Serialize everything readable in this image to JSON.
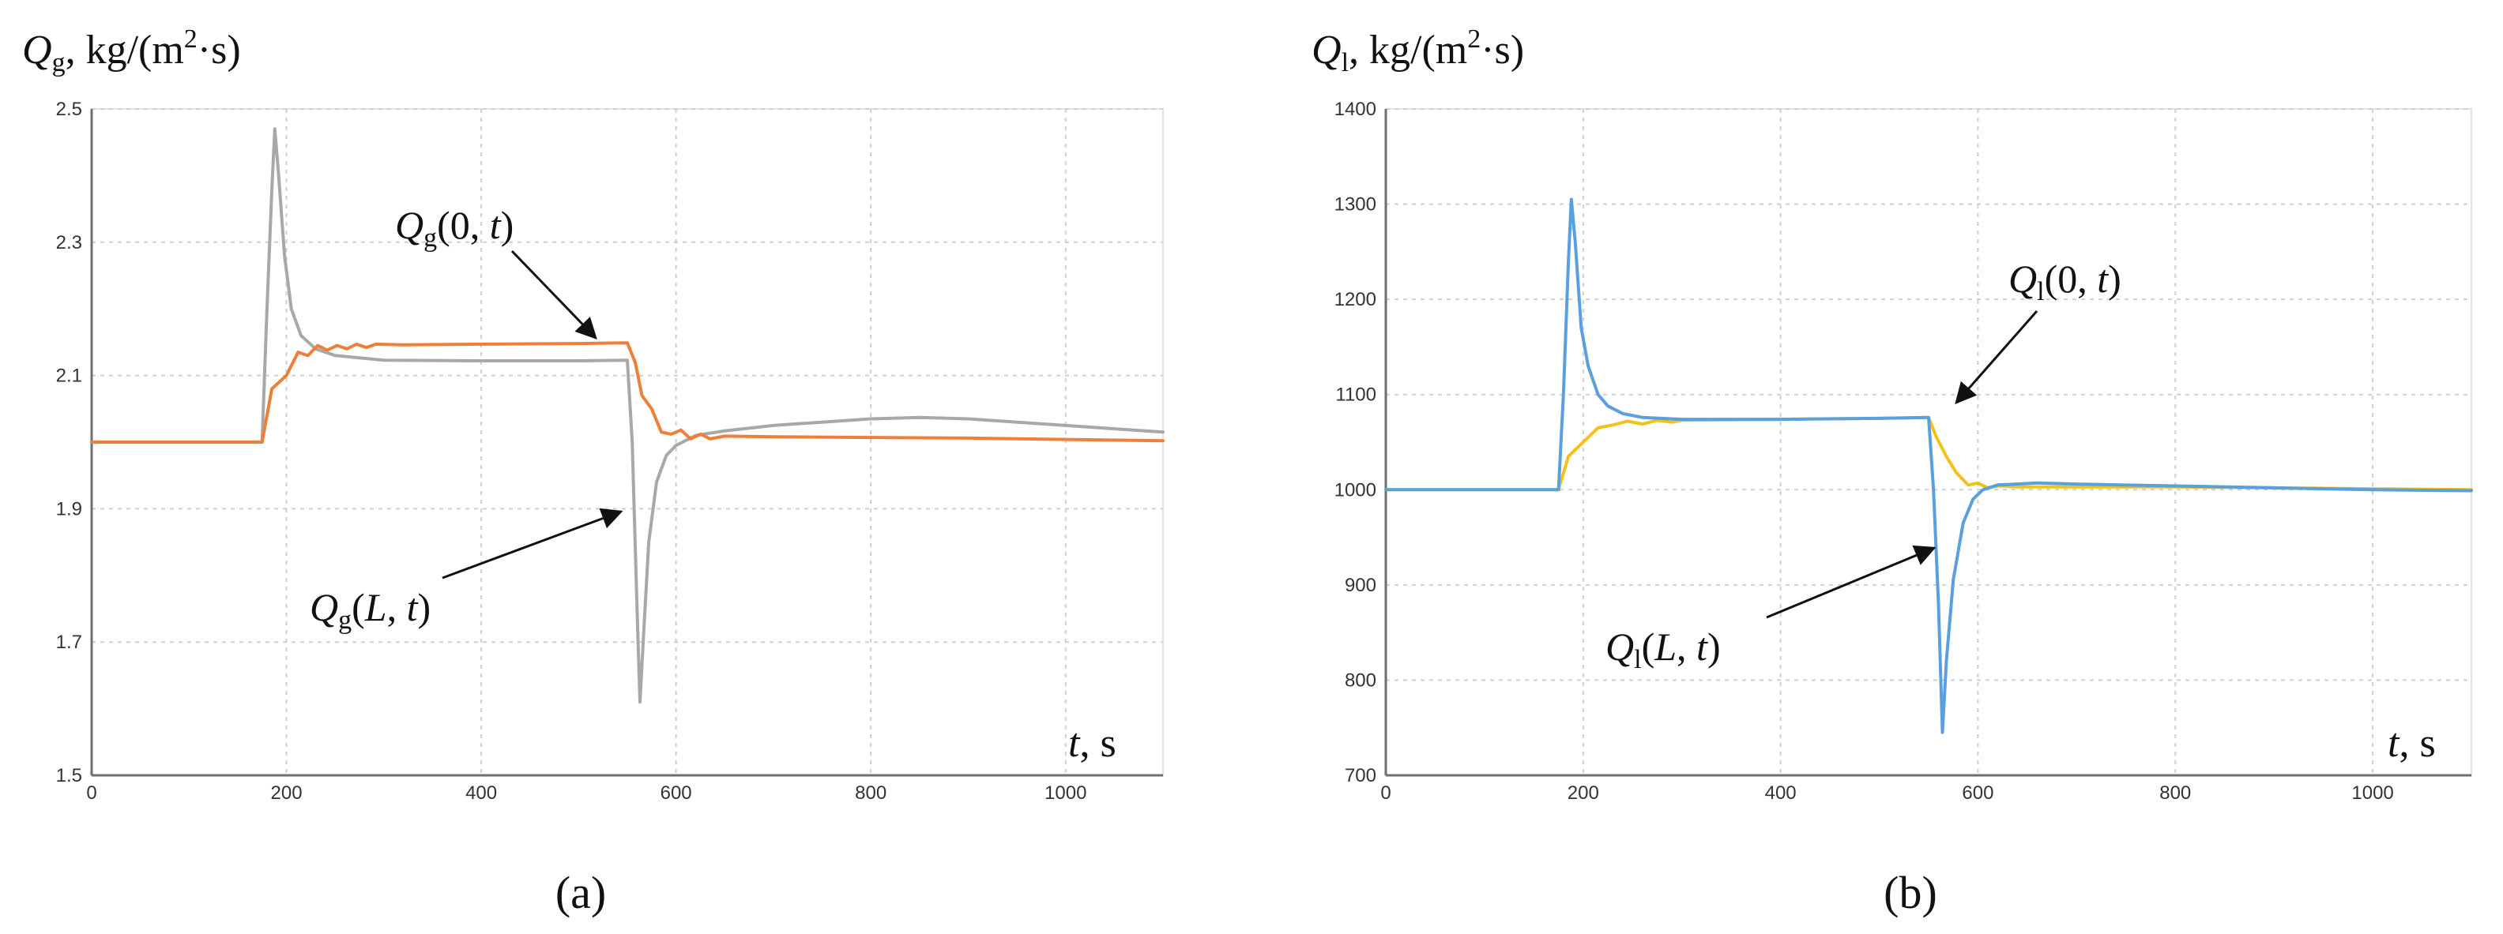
{
  "chart_data": [
    {
      "type": "line",
      "panel_label": "(a)",
      "ylabel": {
        "sym": "Q",
        "sub": "g",
        "unit_pre": ", kg/(m",
        "sup": "2",
        "unit_post": "·s)"
      },
      "xlabel": {
        "sym": "t",
        "unit": ", s"
      },
      "xlim": [
        0,
        1100
      ],
      "ylim": [
        1.5,
        2.5
      ],
      "xticks": [
        0,
        200,
        400,
        600,
        800,
        1000
      ],
      "xtick_labels": [
        "0",
        "200",
        "400",
        "600",
        "800",
        "1000"
      ],
      "yticks": [
        1.5,
        1.7,
        1.9,
        2.1,
        2.3,
        2.5
      ],
      "ytick_labels": [
        "1.5",
        "1.7",
        "1.9",
        "2.1",
        "2.3",
        "2.5"
      ],
      "grid": true,
      "series": [
        {
          "name": "Qg(L, t)",
          "color": "#a8a8a8",
          "points": [
            [
              0,
              2.0
            ],
            [
              175,
              2.0
            ],
            [
              180,
              2.2
            ],
            [
              185,
              2.38
            ],
            [
              188,
              2.47
            ],
            [
              192,
              2.4
            ],
            [
              198,
              2.28
            ],
            [
              205,
              2.2
            ],
            [
              215,
              2.16
            ],
            [
              230,
              2.14
            ],
            [
              250,
              2.13
            ],
            [
              300,
              2.123
            ],
            [
              400,
              2.122
            ],
            [
              500,
              2.122
            ],
            [
              550,
              2.123
            ],
            [
              555,
              2.0
            ],
            [
              560,
              1.75
            ],
            [
              563,
              1.61
            ],
            [
              567,
              1.72
            ],
            [
              572,
              1.85
            ],
            [
              580,
              1.94
            ],
            [
              590,
              1.98
            ],
            [
              600,
              1.995
            ],
            [
              620,
              2.01
            ],
            [
              650,
              2.017
            ],
            [
              700,
              2.025
            ],
            [
              750,
              2.03
            ],
            [
              800,
              2.035
            ],
            [
              850,
              2.037
            ],
            [
              900,
              2.035
            ],
            [
              950,
              2.03
            ],
            [
              1000,
              2.025
            ],
            [
              1050,
              2.02
            ],
            [
              1100,
              2.015
            ]
          ]
        },
        {
          "name": "Qg(0, t)",
          "color": "#ee7f3b",
          "points": [
            [
              0,
              2.0
            ],
            [
              175,
              2.0
            ],
            [
              185,
              2.08
            ],
            [
              200,
              2.1
            ],
            [
              212,
              2.135
            ],
            [
              222,
              2.13
            ],
            [
              232,
              2.145
            ],
            [
              242,
              2.138
            ],
            [
              252,
              2.145
            ],
            [
              262,
              2.14
            ],
            [
              272,
              2.147
            ],
            [
              282,
              2.142
            ],
            [
              292,
              2.147
            ],
            [
              320,
              2.146
            ],
            [
              400,
              2.147
            ],
            [
              500,
              2.148
            ],
            [
              550,
              2.149
            ],
            [
              558,
              2.12
            ],
            [
              565,
              2.07
            ],
            [
              575,
              2.05
            ],
            [
              585,
              2.015
            ],
            [
              595,
              2.012
            ],
            [
              605,
              2.018
            ],
            [
              615,
              2.005
            ],
            [
              625,
              2.012
            ],
            [
              635,
              2.005
            ],
            [
              650,
              2.009
            ],
            [
              700,
              2.008
            ],
            [
              800,
              2.007
            ],
            [
              900,
              2.006
            ],
            [
              1000,
              2.004
            ],
            [
              1100,
              2.002
            ]
          ]
        }
      ],
      "annotations": [
        {
          "sym": "Q",
          "sub": "g",
          "args": "(0, ",
          "var": "t",
          "close": ")"
        },
        {
          "sym": "Q",
          "sub": "g",
          "args": "(",
          "var": "L",
          "mid": ", ",
          "var2": "t",
          "close": ")"
        }
      ]
    },
    {
      "type": "line",
      "panel_label": "(b)",
      "ylabel": {
        "sym": "Q",
        "sub": "l",
        "unit_pre": ", kg/(m",
        "sup": "2",
        "unit_post": "·s)"
      },
      "xlabel": {
        "sym": "t",
        "unit": ", s"
      },
      "xlim": [
        0,
        1100
      ],
      "ylim": [
        700,
        1400
      ],
      "xticks": [
        0,
        200,
        400,
        600,
        800,
        1000
      ],
      "xtick_labels": [
        "0",
        "200",
        "400",
        "600",
        "800",
        "1000"
      ],
      "yticks": [
        700,
        800,
        900,
        1000,
        1100,
        1200,
        1300,
        1400
      ],
      "ytick_labels": [
        "700",
        "800",
        "900",
        "1000",
        "1100",
        "1200",
        "1300",
        "1400"
      ],
      "grid": true,
      "series": [
        {
          "name": "Ql(0, t)",
          "color": "#f2c21b",
          "points": [
            [
              0,
              1000
            ],
            [
              175,
              1000
            ],
            [
              185,
              1035
            ],
            [
              200,
              1050
            ],
            [
              215,
              1065
            ],
            [
              230,
              1068
            ],
            [
              245,
              1072
            ],
            [
              260,
              1069
            ],
            [
              275,
              1073
            ],
            [
              290,
              1071
            ],
            [
              300,
              1073
            ],
            [
              400,
              1074
            ],
            [
              500,
              1075
            ],
            [
              550,
              1076
            ],
            [
              558,
              1055
            ],
            [
              568,
              1035
            ],
            [
              578,
              1018
            ],
            [
              590,
              1005
            ],
            [
              600,
              1007
            ],
            [
              610,
              1002
            ],
            [
              620,
              1004
            ],
            [
              640,
              1003
            ],
            [
              700,
              1003
            ],
            [
              800,
              1003
            ],
            [
              900,
              1002
            ],
            [
              1000,
              1001
            ],
            [
              1100,
              1000
            ]
          ]
        },
        {
          "name": "Ql(L, t)",
          "color": "#5aa0de",
          "points": [
            [
              0,
              1000
            ],
            [
              175,
              1000
            ],
            [
              180,
              1100
            ],
            [
              185,
              1240
            ],
            [
              188,
              1305
            ],
            [
              192,
              1260
            ],
            [
              198,
              1170
            ],
            [
              205,
              1130
            ],
            [
              215,
              1100
            ],
            [
              225,
              1088
            ],
            [
              240,
              1080
            ],
            [
              260,
              1076
            ],
            [
              300,
              1074
            ],
            [
              400,
              1074
            ],
            [
              500,
              1075
            ],
            [
              550,
              1076
            ],
            [
              555,
              1000
            ],
            [
              560,
              880
            ],
            [
              564,
              745
            ],
            [
              568,
              820
            ],
            [
              575,
              905
            ],
            [
              585,
              965
            ],
            [
              595,
              990
            ],
            [
              605,
              1000
            ],
            [
              620,
              1005
            ],
            [
              660,
              1007
            ],
            [
              700,
              1006
            ],
            [
              800,
              1004
            ],
            [
              900,
              1002
            ],
            [
              1000,
              1000
            ],
            [
              1100,
              999
            ]
          ]
        }
      ],
      "annotations": [
        {
          "sym": "Q",
          "sub": "l",
          "args": "(0, ",
          "var": "t",
          "close": ")"
        },
        {
          "sym": "Q",
          "sub": "l",
          "args": "(",
          "var": "L",
          "mid": ", ",
          "var2": "t",
          "close": ")"
        }
      ]
    }
  ]
}
